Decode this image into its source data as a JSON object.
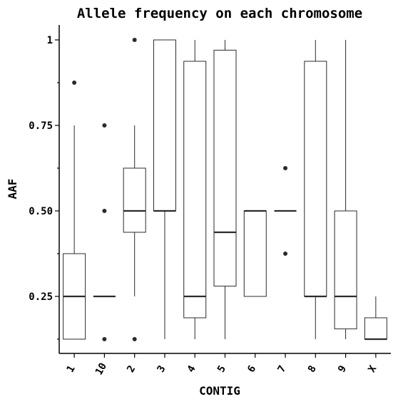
{
  "chart_data": {
    "type": "box",
    "title": "Allele frequency on each chromosome",
    "xlabel": "CONTIG",
    "ylabel": "AAF",
    "ylim": [
      0.085,
      1.04
    ],
    "yticks": [
      {
        "value": 1.0,
        "label": "1"
      },
      {
        "value": 0.75,
        "label": "0.75"
      },
      {
        "value": 0.5,
        "label": "0.50"
      },
      {
        "value": 0.25,
        "label": "0.25"
      }
    ],
    "minor_yticks": [
      0.125,
      0.375,
      0.625,
      0.875
    ],
    "grid": false,
    "categories": [
      "1",
      "10",
      "2",
      "3",
      "4",
      "5",
      "6",
      "7",
      "8",
      "9",
      "X"
    ],
    "boxes": [
      {
        "category": "1",
        "whisker_low": 0.125,
        "q1": 0.125,
        "median": 0.25,
        "q3": 0.375,
        "whisker_high": 0.75,
        "outliers": [
          0.875
        ]
      },
      {
        "category": "10",
        "whisker_low": 0.25,
        "q1": 0.25,
        "median": 0.25,
        "q3": 0.25,
        "whisker_high": 0.25,
        "outliers": [
          0.125,
          0.5,
          0.75
        ]
      },
      {
        "category": "2",
        "whisker_low": 0.25,
        "q1": 0.4375,
        "median": 0.5,
        "q3": 0.625,
        "whisker_high": 0.75,
        "outliers": [
          0.125,
          1.0
        ]
      },
      {
        "category": "3",
        "whisker_low": 0.125,
        "q1": 0.5,
        "median": 0.5,
        "q3": 1.0,
        "whisker_high": 1.0,
        "outliers": []
      },
      {
        "category": "4",
        "whisker_low": 0.125,
        "q1": 0.1875,
        "median": 0.25,
        "q3": 0.9375,
        "whisker_high": 1.0,
        "outliers": []
      },
      {
        "category": "5",
        "whisker_low": 0.125,
        "q1": 0.28,
        "median": 0.4375,
        "q3": 0.97,
        "whisker_high": 1.0,
        "outliers": []
      },
      {
        "category": "6",
        "whisker_low": 0.25,
        "q1": 0.25,
        "median": 0.5,
        "q3": 0.5,
        "whisker_high": 0.5,
        "outliers": []
      },
      {
        "category": "7",
        "whisker_low": 0.5,
        "q1": 0.5,
        "median": 0.5,
        "q3": 0.5,
        "whisker_high": 0.5,
        "outliers": [
          0.375,
          0.625
        ]
      },
      {
        "category": "8",
        "whisker_low": 0.125,
        "q1": 0.25,
        "median": 0.25,
        "q3": 0.9375,
        "whisker_high": 1.0,
        "outliers": []
      },
      {
        "category": "9",
        "whisker_low": 0.125,
        "q1": 0.155,
        "median": 0.25,
        "q3": 0.5,
        "whisker_high": 1.0,
        "outliers": []
      },
      {
        "category": "X",
        "whisker_low": 0.125,
        "q1": 0.125,
        "median": 0.125,
        "q3": 0.1875,
        "whisker_high": 0.25,
        "outliers": []
      }
    ]
  }
}
